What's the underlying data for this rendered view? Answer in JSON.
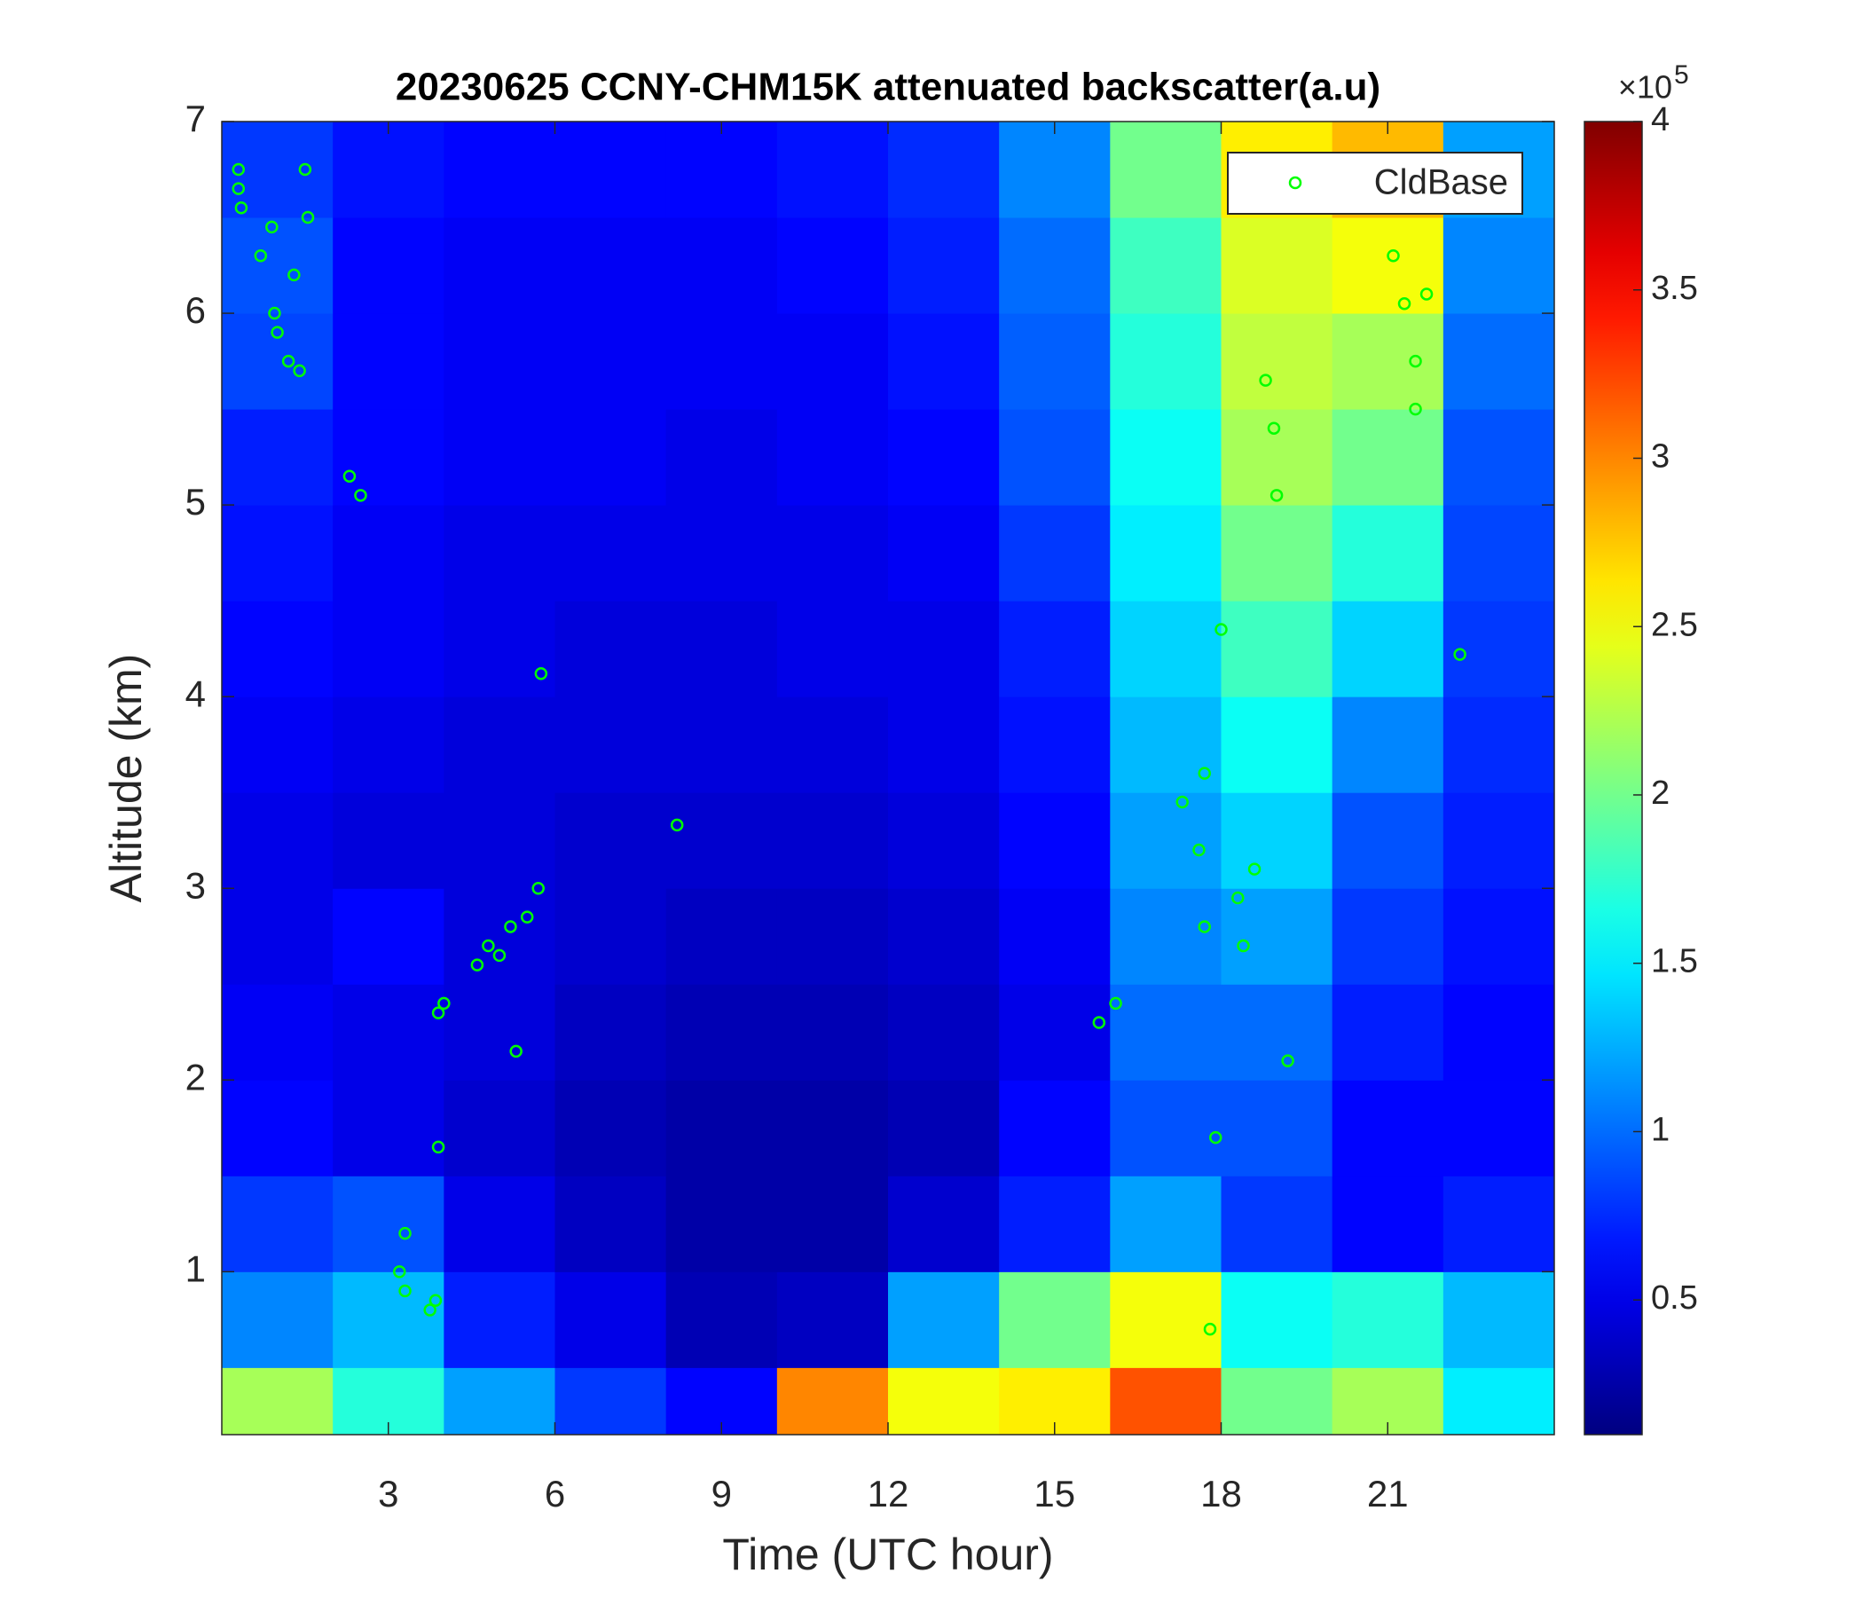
{
  "chart_data": {
    "type": "heatmap",
    "title": "20230625 CCNY-CHM15K attenuated backscatter(a.u)",
    "xlabel": "Time (UTC hour)",
    "ylabel": "Altitude (km)",
    "xlim": [
      0,
      24
    ],
    "ylim": [
      0.15,
      7
    ],
    "xticks": [
      3,
      6,
      9,
      12,
      15,
      18,
      21
    ],
    "yticks": [
      1,
      2,
      3,
      4,
      5,
      6,
      7
    ],
    "colormap": "jet",
    "clim": [
      10000,
      400000
    ],
    "cticks": [
      {
        "value": 50000,
        "label": "0.5"
      },
      {
        "value": 100000,
        "label": "1"
      },
      {
        "value": 150000,
        "label": "1.5"
      },
      {
        "value": 200000,
        "label": "2"
      },
      {
        "value": 250000,
        "label": "2.5"
      },
      {
        "value": 300000,
        "label": "3"
      },
      {
        "value": 350000,
        "label": "3.5"
      },
      {
        "value": 400000,
        "label": "4"
      }
    ],
    "colorbar_multiplier": {
      "base": "×10",
      "exponent": "5"
    },
    "legend": "upper right",
    "heatmap": {
      "x": [
        1,
        3,
        5,
        7,
        9,
        11,
        13,
        15,
        17,
        19,
        21,
        23
      ],
      "y": [
        0.25,
        0.75,
        1.25,
        1.75,
        2.25,
        2.75,
        3.25,
        3.75,
        4.25,
        4.75,
        5.25,
        5.75,
        6.25,
        6.75
      ],
      "z": [
        [
          220000,
          170000,
          120000,
          80000,
          60000,
          300000,
          250000,
          260000,
          320000,
          200000,
          220000,
          150000
        ],
        [
          110000,
          130000,
          70000,
          50000,
          30000,
          35000,
          120000,
          200000,
          250000,
          160000,
          170000,
          130000
        ],
        [
          80000,
          90000,
          50000,
          35000,
          25000,
          25000,
          40000,
          70000,
          120000,
          80000,
          60000,
          70000
        ],
        [
          60000,
          50000,
          40000,
          30000,
          25000,
          25000,
          30000,
          60000,
          90000,
          90000,
          60000,
          60000
        ],
        [
          55000,
          50000,
          45000,
          35000,
          30000,
          30000,
          35000,
          50000,
          100000,
          100000,
          70000,
          60000
        ],
        [
          50000,
          60000,
          45000,
          40000,
          35000,
          35000,
          40000,
          55000,
          110000,
          120000,
          80000,
          65000
        ],
        [
          50000,
          45000,
          45000,
          40000,
          40000,
          40000,
          45000,
          60000,
          120000,
          140000,
          90000,
          70000
        ],
        [
          55000,
          50000,
          45000,
          45000,
          45000,
          45000,
          50000,
          65000,
          130000,
          160000,
          110000,
          75000
        ],
        [
          60000,
          55000,
          50000,
          45000,
          45000,
          50000,
          50000,
          70000,
          140000,
          180000,
          140000,
          80000
        ],
        [
          65000,
          55000,
          50000,
          50000,
          50000,
          50000,
          55000,
          80000,
          150000,
          200000,
          170000,
          85000
        ],
        [
          70000,
          60000,
          55000,
          55000,
          50000,
          55000,
          60000,
          90000,
          160000,
          220000,
          200000,
          90000
        ],
        [
          85000,
          60000,
          55000,
          55000,
          55000,
          55000,
          65000,
          95000,
          170000,
          230000,
          220000,
          100000
        ],
        [
          90000,
          60000,
          55000,
          55000,
          55000,
          60000,
          70000,
          100000,
          180000,
          240000,
          250000,
          110000
        ],
        [
          80000,
          65000,
          60000,
          60000,
          60000,
          65000,
          75000,
          110000,
          200000,
          260000,
          280000,
          120000
        ]
      ]
    },
    "series": [
      {
        "name": "CldBase",
        "type": "scatter",
        "color": "#00ff00",
        "x": [
          0.3,
          0.3,
          0.35,
          0.7,
          0.9,
          0.95,
          1.0,
          1.2,
          1.4,
          1.5,
          1.55,
          1.3,
          2.3,
          2.5,
          3.2,
          3.3,
          3.3,
          3.75,
          3.85,
          3.9,
          3.9,
          4.0,
          4.6,
          4.8,
          5.0,
          5.2,
          5.5,
          5.7,
          5.3,
          5.75,
          8.2,
          15.8,
          16.1,
          17.3,
          17.6,
          17.7,
          17.7,
          17.8,
          17.9,
          18.0,
          18.3,
          18.4,
          18.6,
          18.8,
          18.95,
          19.0,
          19.2,
          21.1,
          21.3,
          21.5,
          21.5,
          21.7,
          22.3
        ],
        "y": [
          6.75,
          6.65,
          6.55,
          6.3,
          6.45,
          6.0,
          5.9,
          5.75,
          5.7,
          6.75,
          6.5,
          6.2,
          5.15,
          5.05,
          1.0,
          0.9,
          1.2,
          0.8,
          0.85,
          1.65,
          2.35,
          2.4,
          2.6,
          2.7,
          2.65,
          2.8,
          2.85,
          3.0,
          2.15,
          4.12,
          3.33,
          2.3,
          2.4,
          3.45,
          3.2,
          3.6,
          2.8,
          0.7,
          1.7,
          4.35,
          2.95,
          2.7,
          3.1,
          5.65,
          5.4,
          5.05,
          2.1,
          6.3,
          6.05,
          5.75,
          5.5,
          6.1,
          4.22
        ]
      }
    ]
  }
}
